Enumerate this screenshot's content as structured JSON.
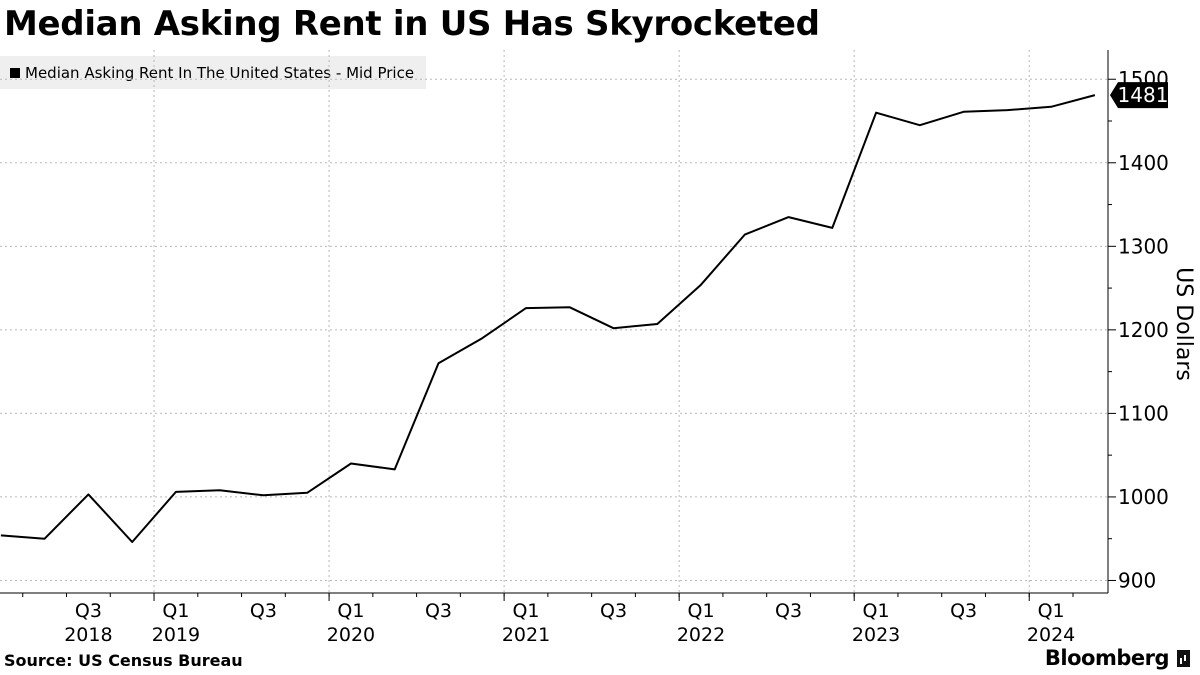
{
  "title": "Median Asking Rent in US Has Skyrocketed",
  "source": "Source: US Census Bureau",
  "brand": "Bloomberg",
  "colors": {
    "line": "#000000",
    "grid": "#b8b8b8",
    "legend_bg": "#efefef",
    "badge_bg": "#000000",
    "badge_text": "#ffffff"
  },
  "chart_data": {
    "type": "line",
    "title": "Median Asking Rent in US Has Skyrocketed",
    "ylabel": "US Dollars",
    "ylim": [
      885,
      1535
    ],
    "yticks": [
      900,
      1000,
      1100,
      1200,
      1300,
      1400,
      1500
    ],
    "grid": true,
    "legend_placement": "top-left",
    "x": [
      "2018 Q1",
      "2018 Q2",
      "2018 Q3",
      "2018 Q4",
      "2019 Q1",
      "2019 Q2",
      "2019 Q3",
      "2019 Q4",
      "2020 Q1",
      "2020 Q2",
      "2020 Q3",
      "2020 Q4",
      "2021 Q1",
      "2021 Q2",
      "2021 Q3",
      "2021 Q4",
      "2022 Q1",
      "2022 Q2",
      "2022 Q3",
      "2022 Q4",
      "2023 Q1",
      "2023 Q2",
      "2023 Q3",
      "2023 Q4",
      "2024 Q1",
      "2024 Q2"
    ],
    "x_tick_labels": [
      {
        "quarter": "Q3",
        "year": "2018"
      },
      {
        "quarter": "Q1",
        "year": "2019"
      },
      {
        "quarter": "Q3",
        "year": ""
      },
      {
        "quarter": "Q1",
        "year": "2020"
      },
      {
        "quarter": "Q3",
        "year": ""
      },
      {
        "quarter": "Q1",
        "year": "2021"
      },
      {
        "quarter": "Q3",
        "year": ""
      },
      {
        "quarter": "Q1",
        "year": "2022"
      },
      {
        "quarter": "Q3",
        "year": ""
      },
      {
        "quarter": "Q1",
        "year": "2023"
      },
      {
        "quarter": "Q3",
        "year": ""
      },
      {
        "quarter": "Q1",
        "year": "2024"
      }
    ],
    "series": [
      {
        "name": "Median Asking Rent In The United States - Mid Price",
        "values": [
          954,
          950,
          1003,
          946,
          1006,
          1008,
          1002,
          1005,
          1040,
          1033,
          1160,
          1190,
          1226,
          1227,
          1202,
          1207,
          1254,
          1314,
          1335,
          1322,
          1460,
          1445,
          1461,
          1463,
          1467,
          1481
        ]
      }
    ],
    "last_value_label": "1481"
  }
}
